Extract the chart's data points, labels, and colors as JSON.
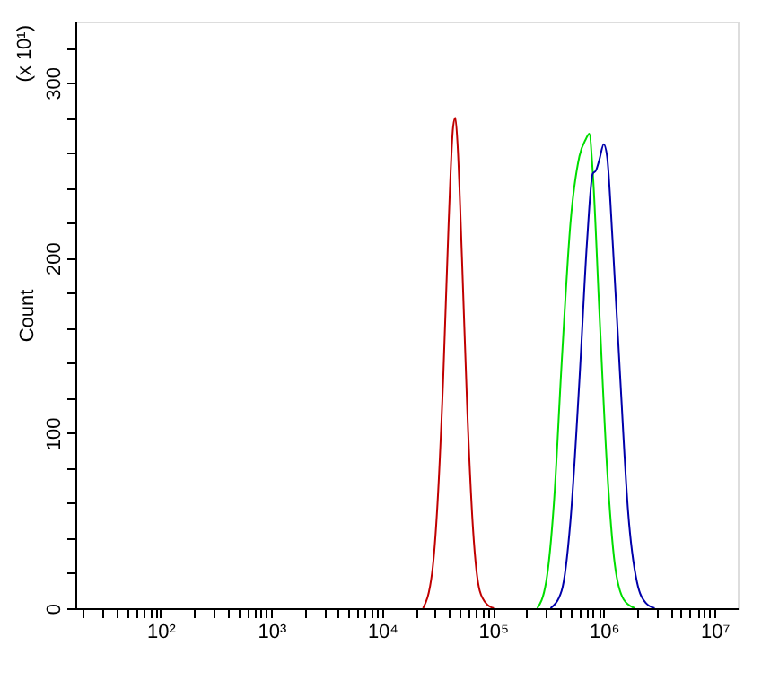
{
  "chart_data": {
    "type": "line",
    "xlabel": null,
    "ylabel": "Count",
    "annotations": [
      "(x 10¹)"
    ],
    "log": "x",
    "grid": false,
    "marker": "none",
    "line_style": "solid",
    "xlim": [
      17,
      16200000
    ],
    "ylim": [
      0,
      335
    ],
    "xticks": [
      {
        "value": 20,
        "label": null
      },
      {
        "value": 30,
        "label": null
      },
      {
        "value": 40,
        "label": null
      },
      {
        "value": 50,
        "label": null
      },
      {
        "value": 60,
        "label": null
      },
      {
        "value": 70,
        "label": null
      },
      {
        "value": 80,
        "label": null
      },
      {
        "value": 90,
        "label": null
      },
      {
        "value": 100,
        "label": "10²"
      },
      {
        "value": 200,
        "label": null
      },
      {
        "value": 300,
        "label": null
      },
      {
        "value": 400,
        "label": null
      },
      {
        "value": 500,
        "label": null
      },
      {
        "value": 600,
        "label": null
      },
      {
        "value": 700,
        "label": null
      },
      {
        "value": 800,
        "label": null
      },
      {
        "value": 900,
        "label": null
      },
      {
        "value": 1000,
        "label": "10³"
      },
      {
        "value": 2000,
        "label": null
      },
      {
        "value": 3000,
        "label": null
      },
      {
        "value": 4000,
        "label": null
      },
      {
        "value": 5000,
        "label": null
      },
      {
        "value": 6000,
        "label": null
      },
      {
        "value": 7000,
        "label": null
      },
      {
        "value": 8000,
        "label": null
      },
      {
        "value": 9000,
        "label": null
      },
      {
        "value": 10000,
        "label": "10⁴"
      },
      {
        "value": 20000,
        "label": null
      },
      {
        "value": 30000,
        "label": null
      },
      {
        "value": 40000,
        "label": null
      },
      {
        "value": 50000,
        "label": null
      },
      {
        "value": 60000,
        "label": null
      },
      {
        "value": 70000,
        "label": null
      },
      {
        "value": 80000,
        "label": null
      },
      {
        "value": 90000,
        "label": null
      },
      {
        "value": 100000,
        "label": "10⁵"
      },
      {
        "value": 200000,
        "label": null
      },
      {
        "value": 300000,
        "label": null
      },
      {
        "value": 400000,
        "label": null
      },
      {
        "value": 500000,
        "label": null
      },
      {
        "value": 600000,
        "label": null
      },
      {
        "value": 700000,
        "label": null
      },
      {
        "value": 800000,
        "label": null
      },
      {
        "value": 900000,
        "label": null
      },
      {
        "value": 1000000,
        "label": "10⁶"
      },
      {
        "value": 2000000,
        "label": null
      },
      {
        "value": 3000000,
        "label": null
      },
      {
        "value": 4000000,
        "label": null
      },
      {
        "value": 5000000,
        "label": null
      },
      {
        "value": 6000000,
        "label": null
      },
      {
        "value": 7000000,
        "label": null
      },
      {
        "value": 8000000,
        "label": null
      },
      {
        "value": 9000000,
        "label": null
      },
      {
        "value": 10000000,
        "label": "10⁷"
      }
    ],
    "yticks": [
      0,
      {
        "value": 20,
        "label": null
      },
      {
        "value": 40,
        "label": null
      },
      {
        "value": 60,
        "label": null
      },
      {
        "value": 80,
        "label": null
      },
      100,
      {
        "value": 120,
        "label": null
      },
      {
        "value": 140,
        "label": null
      },
      {
        "value": 160,
        "label": null
      },
      {
        "value": 180,
        "label": null
      },
      200,
      {
        "value": 220,
        "label": null
      },
      {
        "value": 240,
        "label": null
      },
      {
        "value": 260,
        "label": null
      },
      {
        "value": 280,
        "label": null
      },
      300,
      {
        "value": 320,
        "label": null
      }
    ],
    "series": [
      {
        "color": "#c00000",
        "x": [
          23400,
          28200,
          31600,
          35500,
          39800,
          43700,
          45700,
          47900,
          52500,
          58900,
          66100,
          75900,
          89100,
          102000
        ],
        "values": [
          0,
          20,
          60,
          130,
          220,
          275,
          280,
          265,
          200,
          110,
          45,
          10,
          2,
          0
        ]
      },
      {
        "color": "#00dd00",
        "x": [
          251000,
          302000,
          355000,
          417000,
          501000,
          603000,
          692000,
          741000,
          794000,
          912000,
          1072000,
          1259000,
          1514000,
          1905000
        ],
        "values": [
          0,
          15,
          60,
          140,
          220,
          258,
          268,
          271,
          250,
          170,
          80,
          25,
          5,
          0
        ]
      },
      {
        "color": "#0000aa",
        "x": [
          331000,
          417000,
          501000,
          603000,
          708000,
          794000,
          851000,
          912000,
          1000000,
          1072000,
          1202000,
          1413000,
          1660000,
          1995000,
          2399000,
          2884000
        ],
        "values": [
          0,
          10,
          50,
          130,
          210,
          248,
          250,
          256,
          265,
          258,
          210,
          130,
          55,
          15,
          3,
          0
        ]
      }
    ]
  }
}
